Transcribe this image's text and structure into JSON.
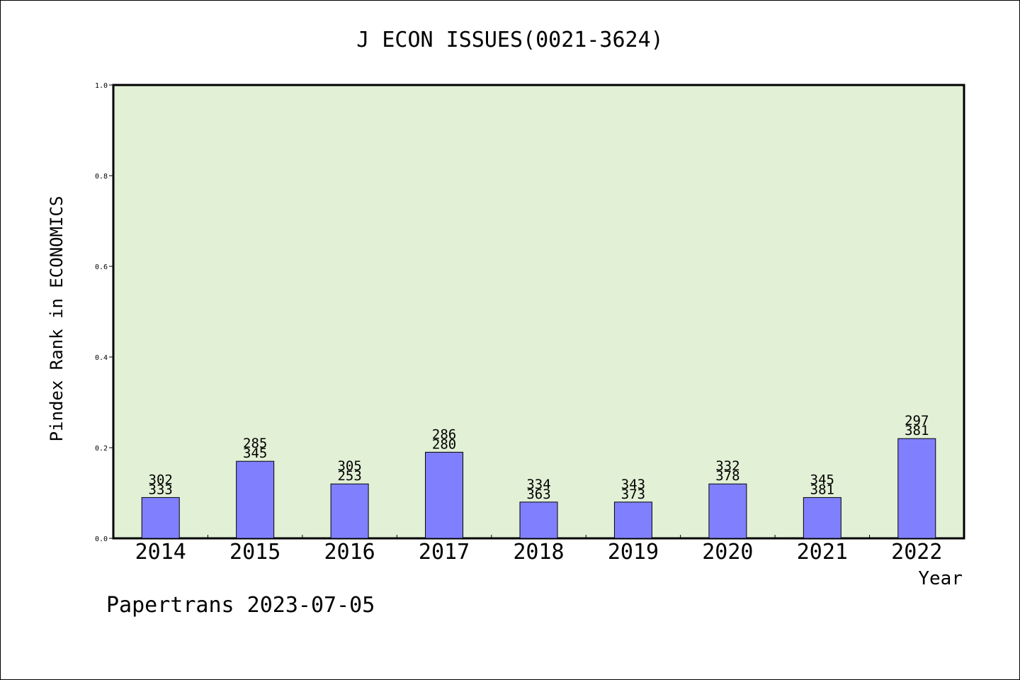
{
  "chart_data": {
    "type": "bar",
    "title": "J ECON ISSUES(0021-3624)",
    "xlabel": "Year",
    "ylabel": "Pindex Rank in ECONOMICS",
    "footer": "Papertrans 2023-07-05",
    "ylim": [
      0,
      1.0
    ],
    "yticks": [
      "0.0",
      "0.2",
      "0.4",
      "0.6",
      "0.8",
      "1.0"
    ],
    "grid": false,
    "categories": [
      "2014",
      "2015",
      "2016",
      "2017",
      "2018",
      "2019",
      "2020",
      "2021",
      "2022"
    ],
    "values": [
      0.09,
      0.17,
      0.12,
      0.19,
      0.08,
      0.08,
      0.12,
      0.09,
      0.22
    ],
    "labels_top": [
      "302",
      "285",
      "305",
      "286",
      "334",
      "343",
      "332",
      "345",
      "297"
    ],
    "labels_bottom": [
      "333",
      "345",
      "253",
      "280",
      "363",
      "373",
      "378",
      "381",
      "381"
    ],
    "colors": {
      "plot_bg": "#e2f0d6",
      "bar": "#8080ff",
      "axis": "#000000"
    }
  }
}
